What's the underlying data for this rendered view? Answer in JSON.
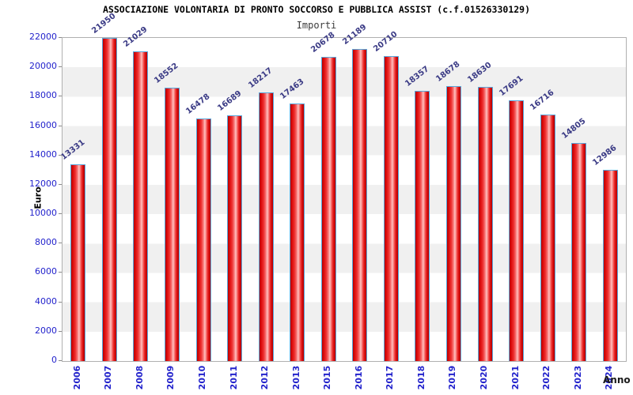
{
  "chart_data": {
    "type": "bar",
    "title": "ASSOCIAZIONE VOLONTARIA DI PRONTO SOCCORSO E PUBBLICA ASSIST (c.f.01526330129)",
    "subtitle": "Importi",
    "xlabel": "Anno",
    "ylabel": "Euro",
    "categories": [
      "2006",
      "2007",
      "2008",
      "2009",
      "2010",
      "2011",
      "2012",
      "2013",
      "2015",
      "2016",
      "2017",
      "2018",
      "2019",
      "2020",
      "2021",
      "2022",
      "2023",
      "2024"
    ],
    "values": [
      13331,
      21950,
      21029,
      18552,
      16478,
      16689,
      18217,
      17463,
      20678,
      21189,
      20710,
      18357,
      18678,
      18630,
      17691,
      16716,
      14805,
      12986
    ],
    "ylim": [
      0,
      22000
    ],
    "ytick_step": 2000,
    "y_ticks": [
      0,
      2000,
      4000,
      6000,
      8000,
      10000,
      12000,
      14000,
      16000,
      18000,
      20000,
      22000
    ],
    "grid": "alternating horizontal bands",
    "legend": "none",
    "colors": {
      "bar_fill_dark": "#b80000",
      "bar_fill_bright": "#ee3333",
      "bar_highlight": "#ffc2c0",
      "bar_border": "#58a8dc",
      "axis_tick_text": "#2323cc",
      "value_label_text": "#3a3a85",
      "band_gray": "#f0f0f0",
      "plot_border": "#b0b0b0",
      "title_text": "#000000",
      "subtitle_text": "#3c3c3c"
    }
  }
}
